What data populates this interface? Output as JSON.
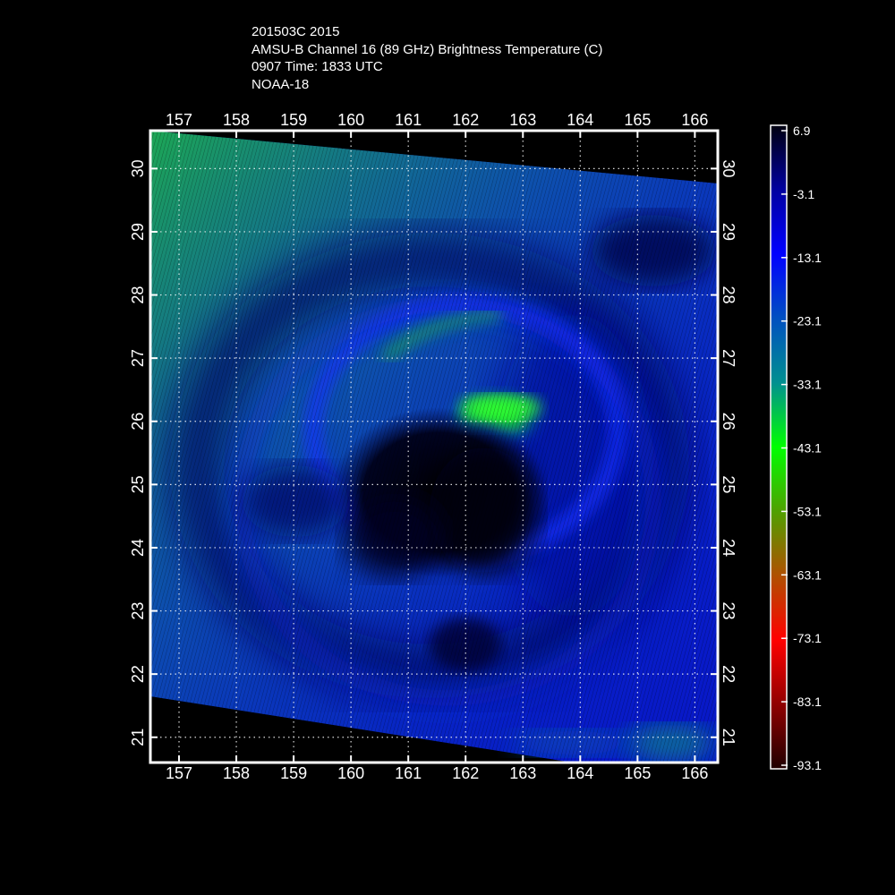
{
  "header": {
    "line1": "201503C 2015",
    "line2": "AMSU-B Channel 16 (89 GHz) Brightness Temperature (C)",
    "line3": "0907 Time: 1833 UTC",
    "line4": "NOAA-18"
  },
  "map": {
    "lon_range": [
      156.5,
      166.4
    ],
    "lat_range": [
      20.6,
      30.6
    ],
    "lon_ticks": [
      "157",
      "158",
      "159",
      "160",
      "161",
      "162",
      "163",
      "164",
      "165",
      "166"
    ],
    "lat_ticks": [
      "21",
      "22",
      "23",
      "24",
      "25",
      "26",
      "27",
      "28",
      "29",
      "30"
    ],
    "grid": true,
    "grid_style": "dotted"
  },
  "colorbar": {
    "labels": [
      "6.9",
      "-3.1",
      "-13.1",
      "-23.1",
      "-33.1",
      "-43.1",
      "-53.1",
      "-63.1",
      "-73.1",
      "-83.1",
      "-93.1"
    ],
    "colors": [
      "#000010",
      "#0000a0",
      "#0000ff",
      "#0050c0",
      "#009090",
      "#00ff00",
      "#50a000",
      "#b05000",
      "#ff0000",
      "#900000",
      "#200000"
    ]
  }
}
